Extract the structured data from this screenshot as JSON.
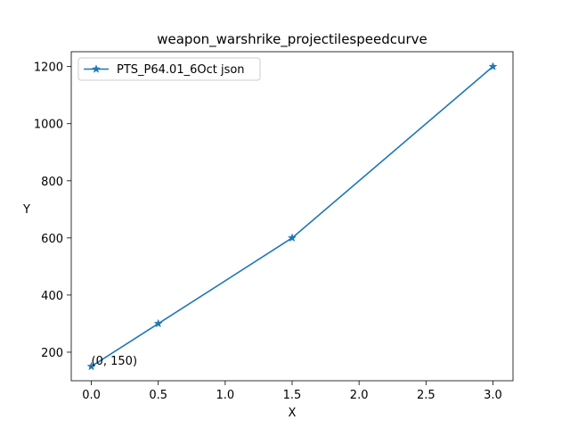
{
  "chart_data": {
    "type": "line",
    "title": "weapon_warshrike_projectilespeedcurve",
    "xlabel": "X",
    "ylabel": "Y",
    "xlim": [
      -0.15,
      3.15
    ],
    "ylim": [
      100,
      1252
    ],
    "xticks": [
      0.0,
      0.5,
      1.0,
      1.5,
      2.0,
      2.5,
      3.0
    ],
    "xtick_labels": [
      "0.0",
      "0.5",
      "1.0",
      "1.5",
      "2.0",
      "2.5",
      "3.0"
    ],
    "yticks": [
      200,
      400,
      600,
      800,
      1000,
      1200
    ],
    "ytick_labels": [
      "200",
      "400",
      "600",
      "800",
      "1000",
      "1200"
    ],
    "grid": false,
    "legend_position": "upper-left",
    "series": [
      {
        "name": "PTS_P64.01_6Oct json",
        "color": "#1f77b4",
        "marker": "star",
        "x": [
          0,
          0.5,
          1.5,
          3.0
        ],
        "y": [
          150,
          300,
          600,
          1200
        ]
      }
    ],
    "annotations": [
      {
        "text": "(0, 150)",
        "x": 0,
        "y": 150
      }
    ]
  }
}
